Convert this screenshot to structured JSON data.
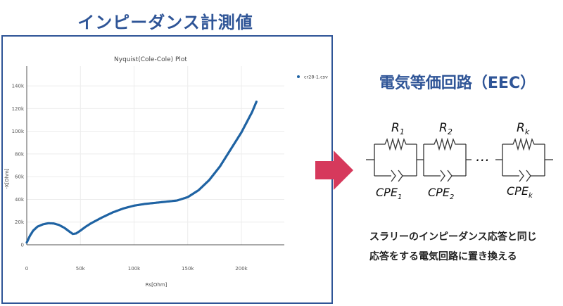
{
  "headings": {
    "measured": "インピーダンス計測値",
    "eec": "電気等価回路（EEC）"
  },
  "chart_data": {
    "type": "scatter",
    "title": "Nyquist(Cole-Cole) Plot",
    "xlabel": "Rs[Ohm]",
    "ylabel": "-X[Ohm]",
    "xlim": [
      0,
      240000
    ],
    "ylim": [
      0,
      145000
    ],
    "xticks": [
      0,
      50000,
      100000,
      150000,
      200000
    ],
    "xtick_labels": [
      "0",
      "50k",
      "100k",
      "150k",
      "200k"
    ],
    "yticks": [
      0,
      20000,
      40000,
      60000,
      80000,
      100000,
      120000,
      140000
    ],
    "ytick_labels": [
      "0",
      "20k",
      "40k",
      "60k",
      "80k",
      "100k",
      "120k",
      "140k"
    ],
    "grid": true,
    "legend_position": "top-right",
    "series": [
      {
        "name": "cr28-1.csv",
        "color": "#1f63a3",
        "x": [
          0,
          3000,
          6000,
          10000,
          15000,
          20000,
          25000,
          30000,
          35000,
          40000,
          43000,
          46000,
          50000,
          55000,
          60000,
          70000,
          80000,
          90000,
          100000,
          110000,
          120000,
          130000,
          140000,
          150000,
          160000,
          170000,
          180000,
          190000,
          200000,
          210000,
          214000
        ],
        "y": [
          2000,
          8000,
          12500,
          16000,
          18000,
          19000,
          18800,
          17500,
          15000,
          11500,
          9500,
          10000,
          12500,
          16000,
          19000,
          24000,
          28500,
          32000,
          34500,
          36000,
          37000,
          38000,
          39000,
          42000,
          48000,
          57000,
          69000,
          84000,
          99000,
          117000,
          126000
        ]
      }
    ]
  },
  "circuit": {
    "labels": {
      "r1": "R1",
      "r2": "R2",
      "rk": "Rk",
      "cpe1": "CPE1",
      "cpe2": "CPE2",
      "cpek": "CPEk",
      "ellipsis": "…"
    }
  },
  "description": {
    "line1": "スラリーのインピーダンス応答と同じ",
    "line2": "応答をする電気回路に置き換える"
  },
  "colors": {
    "heading": "#2f5597",
    "arrow": "#d6395c",
    "series": "#1f63a3"
  }
}
